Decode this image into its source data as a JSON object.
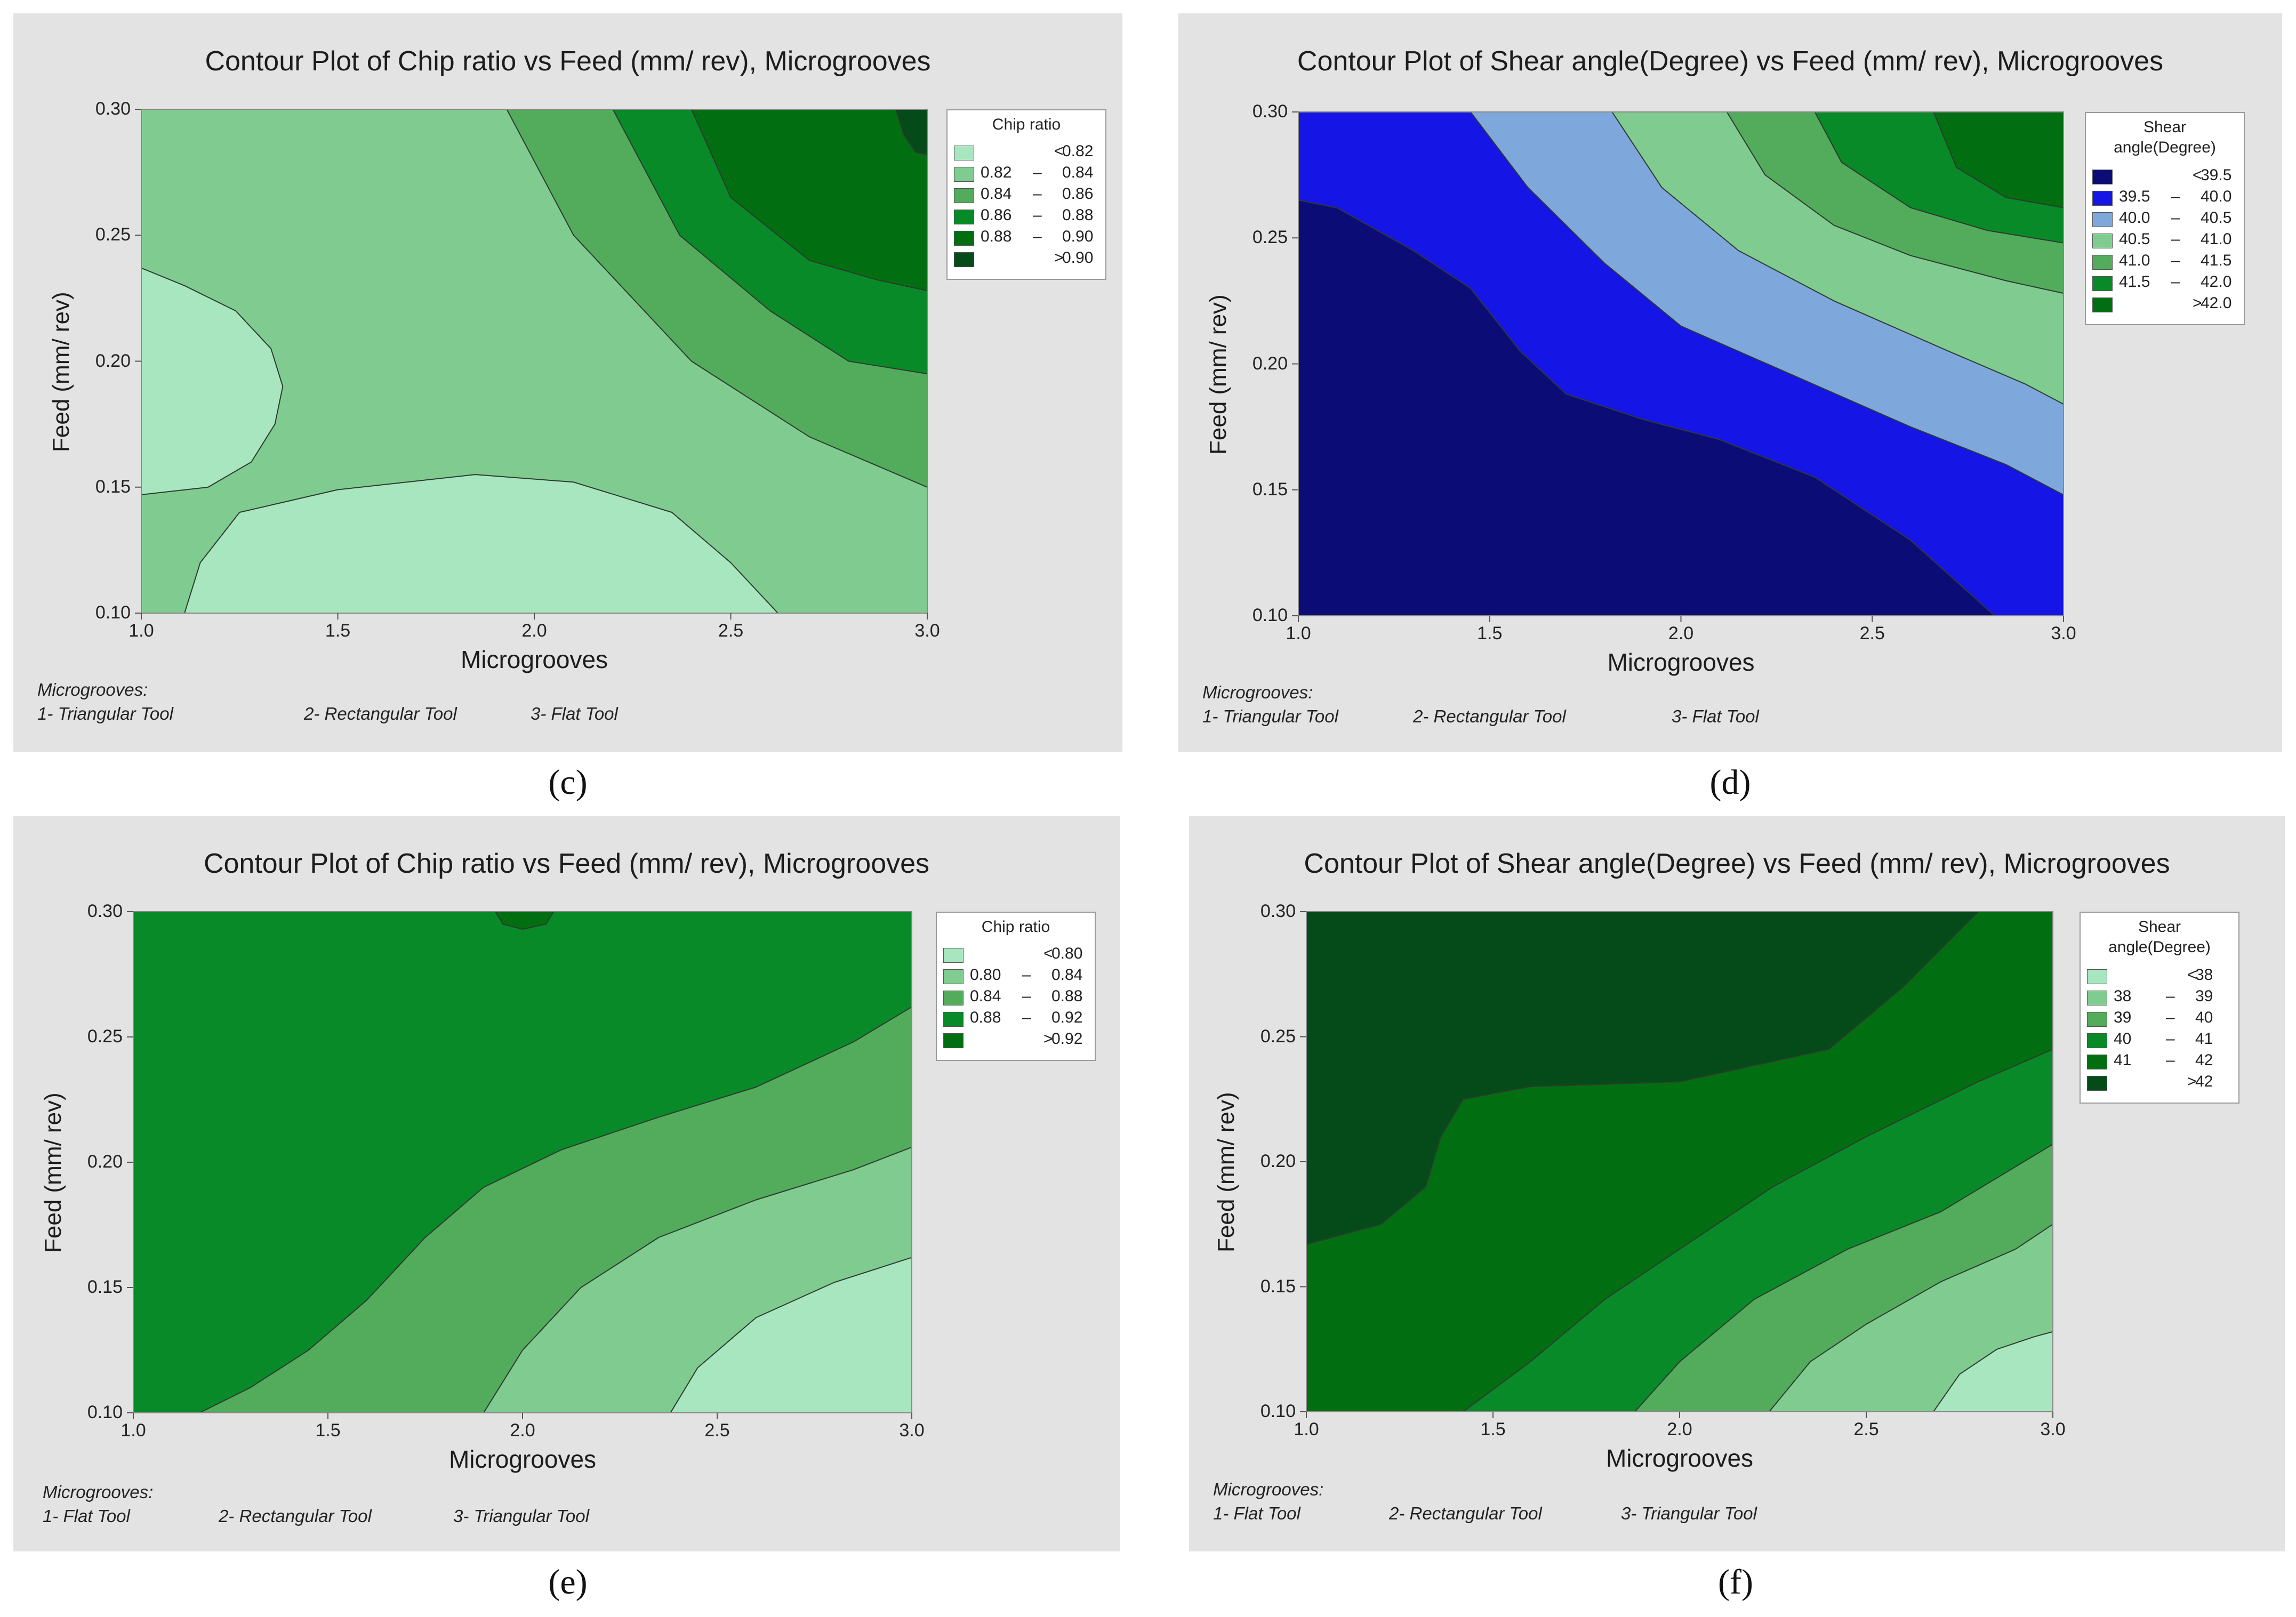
{
  "captions": [
    "(c)",
    "(d)",
    "(e)",
    "(f)"
  ],
  "chart_data": [
    {
      "type": "contour",
      "panel": "c",
      "title": "Contour Plot of Chip ratio vs Feed (mm/ rev), Microgrooves",
      "xlabel": "Microgrooves",
      "ylabel": "Feed (mm/ rev)",
      "xlim": [
        1.0,
        3.0
      ],
      "ylim": [
        0.1,
        0.3
      ],
      "xticks": [
        "1.0",
        "1.5",
        "2.0",
        "2.5",
        "3.0"
      ],
      "yticks": [
        "0.10",
        "0.15",
        "0.20",
        "0.25",
        "0.30"
      ],
      "legend_title": [
        "Chip ratio"
      ],
      "levels": [
        {
          "lo": "",
          "hi": "0.82",
          "sym": "<",
          "color": "#a8e6c0"
        },
        {
          "lo": "0.82",
          "hi": "0.84",
          "sym": "–",
          "color": "#80cc90"
        },
        {
          "lo": "0.84",
          "hi": "0.86",
          "sym": "–",
          "color": "#52ac5c"
        },
        {
          "lo": "0.86",
          "hi": "0.88",
          "sym": "–",
          "color": "#078a27"
        },
        {
          "lo": "0.88",
          "hi": "0.90",
          "sym": "–",
          "color": "#006e11"
        },
        {
          "lo": "",
          "hi": "0.90",
          "sym": ">",
          "color": "#054b1a"
        }
      ],
      "regions": [
        {
          "level": 1,
          "points": [
            [
              1.0,
              0.1
            ],
            [
              3.0,
              0.1
            ],
            [
              3.0,
              0.3
            ],
            [
              1.0,
              0.3
            ]
          ]
        },
        {
          "level": 0,
          "points": [
            [
              1.0,
              0.237
            ],
            [
              1.11,
              0.23
            ],
            [
              1.24,
              0.22
            ],
            [
              1.33,
              0.205
            ],
            [
              1.36,
              0.19
            ],
            [
              1.34,
              0.175
            ],
            [
              1.28,
              0.16
            ],
            [
              1.17,
              0.15
            ],
            [
              1.0,
              0.147
            ]
          ]
        },
        {
          "level": 0,
          "points": [
            [
              1.11,
              0.1
            ],
            [
              1.15,
              0.12
            ],
            [
              1.25,
              0.14
            ],
            [
              1.5,
              0.149
            ],
            [
              1.85,
              0.155
            ],
            [
              2.1,
              0.152
            ],
            [
              2.35,
              0.14
            ],
            [
              2.5,
              0.12
            ],
            [
              2.62,
              0.1
            ]
          ]
        },
        {
          "level": 2,
          "points": [
            [
              1.93,
              0.3
            ],
            [
              2.1,
              0.25
            ],
            [
              2.4,
              0.2
            ],
            [
              2.7,
              0.17
            ],
            [
              3.0,
              0.15
            ],
            [
              3.0,
              0.3
            ]
          ]
        },
        {
          "level": 3,
          "points": [
            [
              2.2,
              0.3
            ],
            [
              2.37,
              0.25
            ],
            [
              2.6,
              0.22
            ],
            [
              2.8,
              0.2
            ],
            [
              3.0,
              0.195
            ],
            [
              3.0,
              0.3
            ]
          ]
        },
        {
          "level": 4,
          "points": [
            [
              2.4,
              0.3
            ],
            [
              2.5,
              0.265
            ],
            [
              2.7,
              0.24
            ],
            [
              2.88,
              0.232
            ],
            [
              3.0,
              0.228
            ],
            [
              3.0,
              0.3
            ]
          ]
        },
        {
          "level": 5,
          "points": [
            [
              2.92,
              0.3
            ],
            [
              2.94,
              0.29
            ],
            [
              2.97,
              0.283
            ],
            [
              3.0,
              0.282
            ],
            [
              3.0,
              0.3
            ]
          ]
        }
      ],
      "notes": [
        "Microgrooves:",
        "1- Triangular Tool",
        "2- Rectangular Tool",
        "3- Flat Tool"
      ]
    },
    {
      "type": "contour",
      "panel": "d",
      "title": "Contour Plot of Shear angle(Degree) vs Feed (mm/ rev), Microgrooves",
      "xlabel": "Microgrooves",
      "ylabel": "Feed (mm/ rev)",
      "xlim": [
        1.0,
        3.0
      ],
      "ylim": [
        0.1,
        0.3
      ],
      "xticks": [
        "1.0",
        "1.5",
        "2.0",
        "2.5",
        "3.0"
      ],
      "yticks": [
        "0.10",
        "0.15",
        "0.20",
        "0.25",
        "0.30"
      ],
      "legend_title": [
        "Shear",
        "angle(Degree)"
      ],
      "levels": [
        {
          "lo": "",
          "hi": "39.5",
          "sym": "<",
          "color": "#0c0c76"
        },
        {
          "lo": "39.5",
          "hi": "40.0",
          "sym": "–",
          "color": "#1515e6"
        },
        {
          "lo": "40.0",
          "hi": "40.5",
          "sym": "–",
          "color": "#7ea8dc"
        },
        {
          "lo": "40.5",
          "hi": "41.0",
          "sym": "–",
          "color": "#80cc90"
        },
        {
          "lo": "41.0",
          "hi": "41.5",
          "sym": "–",
          "color": "#52ac5c"
        },
        {
          "lo": "41.5",
          "hi": "42.0",
          "sym": "–",
          "color": "#078a27"
        },
        {
          "lo": "",
          "hi": "42.0",
          "sym": ">",
          "color": "#006e11"
        }
      ],
      "regions": [
        {
          "level": 0,
          "points": [
            [
              1.0,
              0.1
            ],
            [
              3.0,
              0.1
            ],
            [
              3.0,
              0.3
            ],
            [
              1.0,
              0.3
            ]
          ]
        },
        {
          "level": 1,
          "points": [
            [
              1.0,
              0.265
            ],
            [
              1.1,
              0.262
            ],
            [
              1.3,
              0.245
            ],
            [
              1.45,
              0.23
            ],
            [
              1.58,
              0.205
            ],
            [
              1.7,
              0.188
            ],
            [
              1.9,
              0.178
            ],
            [
              2.1,
              0.17
            ],
            [
              2.35,
              0.155
            ],
            [
              2.6,
              0.13
            ],
            [
              2.82,
              0.1
            ],
            [
              3.0,
              0.1
            ],
            [
              3.0,
              0.3
            ],
            [
              1.0,
              0.3
            ]
          ]
        },
        {
          "level": 2,
          "points": [
            [
              1.45,
              0.3
            ],
            [
              1.6,
              0.27
            ],
            [
              1.8,
              0.24
            ],
            [
              2.0,
              0.215
            ],
            [
              2.3,
              0.195
            ],
            [
              2.6,
              0.175
            ],
            [
              2.85,
              0.16
            ],
            [
              3.0,
              0.148
            ],
            [
              3.0,
              0.3
            ]
          ]
        },
        {
          "level": 3,
          "points": [
            [
              1.82,
              0.3
            ],
            [
              1.95,
              0.27
            ],
            [
              2.15,
              0.245
            ],
            [
              2.4,
              0.225
            ],
            [
              2.7,
              0.205
            ],
            [
              2.9,
              0.192
            ],
            [
              3.0,
              0.184
            ],
            [
              3.0,
              0.3
            ]
          ]
        },
        {
          "level": 4,
          "points": [
            [
              2.12,
              0.3
            ],
            [
              2.22,
              0.275
            ],
            [
              2.4,
              0.255
            ],
            [
              2.6,
              0.243
            ],
            [
              2.85,
              0.233
            ],
            [
              3.0,
              0.228
            ],
            [
              3.0,
              0.3
            ]
          ]
        },
        {
          "level": 5,
          "points": [
            [
              2.35,
              0.3
            ],
            [
              2.42,
              0.28
            ],
            [
              2.6,
              0.262
            ],
            [
              2.8,
              0.253
            ],
            [
              3.0,
              0.248
            ],
            [
              3.0,
              0.3
            ]
          ]
        },
        {
          "level": 6,
          "points": [
            [
              2.66,
              0.3
            ],
            [
              2.72,
              0.278
            ],
            [
              2.85,
              0.266
            ],
            [
              3.0,
              0.262
            ],
            [
              3.0,
              0.3
            ]
          ]
        }
      ],
      "notes": [
        "Microgrooves:",
        "1- Triangular Tool",
        "2- Rectangular Tool",
        "3- Flat Tool"
      ]
    },
    {
      "type": "contour",
      "panel": "e",
      "title": "Contour Plot of Chip ratio vs Feed (mm/ rev), Microgrooves",
      "xlabel": "Microgrooves",
      "ylabel": "Feed (mm/ rev)",
      "xlim": [
        1.0,
        3.0
      ],
      "ylim": [
        0.1,
        0.3
      ],
      "xticks": [
        "1.0",
        "1.5",
        "2.0",
        "2.5",
        "3.0"
      ],
      "yticks": [
        "0.10",
        "0.15",
        "0.20",
        "0.25",
        "0.30"
      ],
      "legend_title": [
        "Chip ratio"
      ],
      "levels": [
        {
          "lo": "",
          "hi": "0.80",
          "sym": "<",
          "color": "#a8e6c0"
        },
        {
          "lo": "0.80",
          "hi": "0.84",
          "sym": "–",
          "color": "#80cc90"
        },
        {
          "lo": "0.84",
          "hi": "0.88",
          "sym": "–",
          "color": "#52ac5c"
        },
        {
          "lo": "0.88",
          "hi": "0.92",
          "sym": "–",
          "color": "#078a27"
        },
        {
          "lo": "",
          "hi": "0.92",
          "sym": ">",
          "color": "#006e11"
        }
      ],
      "regions": [
        {
          "level": 3,
          "points": [
            [
              1.0,
              0.1
            ],
            [
              3.0,
              0.1
            ],
            [
              3.0,
              0.3
            ],
            [
              1.0,
              0.3
            ]
          ]
        },
        {
          "level": 2,
          "points": [
            [
              1.17,
              0.1
            ],
            [
              1.3,
              0.11
            ],
            [
              1.45,
              0.125
            ],
            [
              1.6,
              0.145
            ],
            [
              1.75,
              0.17
            ],
            [
              1.9,
              0.19
            ],
            [
              2.1,
              0.205
            ],
            [
              2.35,
              0.218
            ],
            [
              2.6,
              0.23
            ],
            [
              2.85,
              0.248
            ],
            [
              3.0,
              0.262
            ],
            [
              3.0,
              0.1
            ]
          ]
        },
        {
          "level": 1,
          "points": [
            [
              1.9,
              0.1
            ],
            [
              2.0,
              0.125
            ],
            [
              2.15,
              0.15
            ],
            [
              2.35,
              0.17
            ],
            [
              2.6,
              0.185
            ],
            [
              2.85,
              0.197
            ],
            [
              3.0,
              0.206
            ],
            [
              3.0,
              0.1
            ]
          ]
        },
        {
          "level": 0,
          "points": [
            [
              2.38,
              0.1
            ],
            [
              2.45,
              0.118
            ],
            [
              2.6,
              0.138
            ],
            [
              2.8,
              0.152
            ],
            [
              3.0,
              0.162
            ],
            [
              3.0,
              0.1
            ]
          ]
        },
        {
          "level": 4,
          "points": [
            [
              1.93,
              0.3
            ],
            [
              1.95,
              0.295
            ],
            [
              2.0,
              0.293
            ],
            [
              2.06,
              0.295
            ],
            [
              2.08,
              0.3
            ]
          ]
        }
      ],
      "notes": [
        "Microgrooves:",
        "1- Flat Tool",
        "2- Rectangular Tool",
        "3- Triangular Tool"
      ]
    },
    {
      "type": "contour",
      "panel": "f",
      "title": "Contour Plot of Shear angle(Degree) vs Feed (mm/ rev), Microgrooves",
      "xlabel": "Microgrooves",
      "ylabel": "Feed (mm/ rev)",
      "xlim": [
        1.0,
        3.0
      ],
      "ylim": [
        0.1,
        0.3
      ],
      "xticks": [
        "1.0",
        "1.5",
        "2.0",
        "2.5",
        "3.0"
      ],
      "yticks": [
        "0.10",
        "0.15",
        "0.20",
        "0.25",
        "0.30"
      ],
      "legend_title": [
        "Shear",
        "angle(Degree)"
      ],
      "levels": [
        {
          "lo": "",
          "hi": "38",
          "sym": "<",
          "color": "#a8e6c0"
        },
        {
          "lo": "38",
          "hi": "39",
          "sym": "–",
          "color": "#80cc90"
        },
        {
          "lo": "39",
          "hi": "40",
          "sym": "–",
          "color": "#52ac5c"
        },
        {
          "lo": "40",
          "hi": "41",
          "sym": "–",
          "color": "#078a27"
        },
        {
          "lo": "41",
          "hi": "42",
          "sym": "–",
          "color": "#006e11"
        },
        {
          "lo": "",
          "hi": "42",
          "sym": ">",
          "color": "#054b1a"
        }
      ],
      "regions": [
        {
          "level": 4,
          "points": [
            [
              1.0,
              0.1
            ],
            [
              3.0,
              0.1
            ],
            [
              3.0,
              0.3
            ],
            [
              1.0,
              0.3
            ]
          ]
        },
        {
          "level": 5,
          "points": [
            [
              1.0,
              0.3
            ],
            [
              2.8,
              0.3
            ],
            [
              2.6,
              0.27
            ],
            [
              2.4,
              0.245
            ],
            [
              2.0,
              0.232
            ],
            [
              1.6,
              0.23
            ],
            [
              1.42,
              0.225
            ],
            [
              1.36,
              0.21
            ],
            [
              1.32,
              0.19
            ],
            [
              1.2,
              0.175
            ],
            [
              1.0,
              0.167
            ]
          ]
        },
        {
          "level": 3,
          "points": [
            [
              1.42,
              0.1
            ],
            [
              1.6,
              0.12
            ],
            [
              1.8,
              0.145
            ],
            [
              2.0,
              0.165
            ],
            [
              2.25,
              0.19
            ],
            [
              2.5,
              0.21
            ],
            [
              2.8,
              0.232
            ],
            [
              3.0,
              0.245
            ],
            [
              3.0,
              0.1
            ]
          ]
        },
        {
          "level": 2,
          "points": [
            [
              1.88,
              0.1
            ],
            [
              2.0,
              0.12
            ],
            [
              2.2,
              0.145
            ],
            [
              2.45,
              0.165
            ],
            [
              2.7,
              0.18
            ],
            [
              2.9,
              0.198
            ],
            [
              3.0,
              0.207
            ],
            [
              3.0,
              0.1
            ]
          ]
        },
        {
          "level": 1,
          "points": [
            [
              2.24,
              0.1
            ],
            [
              2.35,
              0.12
            ],
            [
              2.5,
              0.135
            ],
            [
              2.7,
              0.152
            ],
            [
              2.9,
              0.165
            ],
            [
              3.0,
              0.175
            ],
            [
              3.0,
              0.1
            ]
          ]
        },
        {
          "level": 0,
          "points": [
            [
              2.68,
              0.1
            ],
            [
              2.75,
              0.115
            ],
            [
              2.85,
              0.125
            ],
            [
              2.95,
              0.13
            ],
            [
              3.0,
              0.132
            ],
            [
              3.0,
              0.1
            ]
          ]
        }
      ],
      "notes": [
        "Microgrooves:",
        "1- Flat Tool",
        "2- Rectangular Tool",
        "3- Triangular Tool"
      ]
    }
  ]
}
